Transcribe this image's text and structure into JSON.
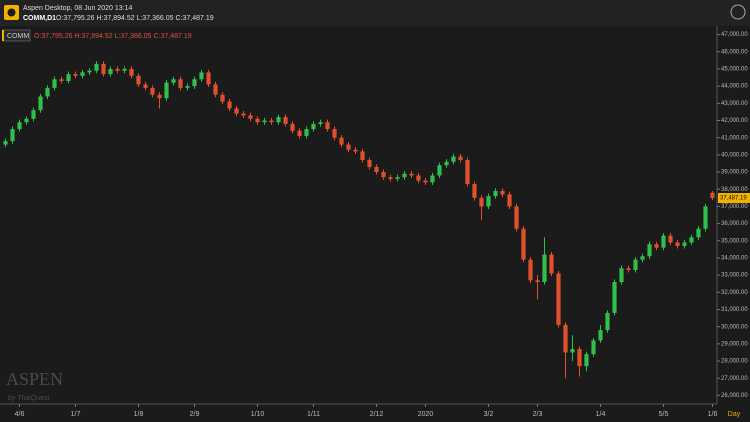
{
  "header": {
    "app_title": "Aspen Desktop, 08 Jun 2020 13:14",
    "symbol": "COMM,D1",
    "ohlc": "O:37,795.26 H:37,894.52 L:37,366.05 C:37,487.19"
  },
  "chart_data": {
    "type": "candlestick",
    "legend_symbol": "COMM",
    "legend_ohlc": "O:37,795.26 H:37,894.52 L:37,366.05 C:37,487.19",
    "watermark": "ASPEN",
    "watermark_sub": "by ThaiQuest",
    "x_unit": "Day",
    "price_tag": "37,487.19",
    "up_color": "#2fbf4a",
    "down_color": "#e0502d",
    "grid": false,
    "categories": [
      null,
      null,
      "4/6",
      null,
      null,
      null,
      null,
      null,
      null,
      null,
      "1/7",
      null,
      null,
      null,
      null,
      null,
      null,
      null,
      null,
      "1/8",
      null,
      null,
      null,
      null,
      null,
      null,
      null,
      "2/9",
      null,
      null,
      null,
      null,
      null,
      null,
      null,
      null,
      "1/10",
      null,
      null,
      null,
      null,
      null,
      null,
      null,
      "1/11",
      null,
      null,
      null,
      null,
      null,
      null,
      null,
      null,
      "2/12",
      null,
      null,
      null,
      null,
      null,
      null,
      "2020",
      null,
      null,
      null,
      null,
      null,
      null,
      null,
      null,
      "3/2",
      null,
      null,
      null,
      null,
      null,
      null,
      "2/3",
      null,
      null,
      null,
      null,
      null,
      null,
      null,
      null,
      "1/4",
      null,
      null,
      null,
      null,
      null,
      null,
      null,
      null,
      "5/5",
      null,
      null,
      null,
      null,
      null,
      null,
      "1/6"
    ],
    "open": [
      40600,
      40800,
      41500,
      41900,
      42100,
      42600,
      43400,
      43900,
      44400,
      44300,
      44700,
      44600,
      44800,
      44900,
      45300,
      44700,
      45000,
      44900,
      45000,
      44600,
      44100,
      43900,
      43500,
      43300,
      44200,
      44400,
      43900,
      44000,
      44400,
      44800,
      44100,
      43500,
      43100,
      42700,
      42400,
      42300,
      42100,
      41900,
      42000,
      41900,
      42200,
      41800,
      41400,
      41100,
      41500,
      41800,
      41900,
      41500,
      41000,
      40600,
      40300,
      40200,
      39700,
      39300,
      39000,
      38700,
      38600,
      38700,
      38900,
      38800,
      38500,
      38400,
      38800,
      39400,
      39600,
      39900,
      39700,
      38300,
      37500,
      37000,
      37600,
      37900,
      37700,
      37000,
      35700,
      33900,
      32700,
      32600,
      34200,
      33100,
      30100,
      28500,
      28700,
      27700,
      28400,
      29200,
      29800,
      30800,
      32600,
      33400,
      33300,
      33900,
      34100,
      34800,
      34600,
      35300,
      34900,
      34700,
      34900,
      35200,
      35700,
      37795.26
    ],
    "high": [
      40950,
      41650,
      42050,
      42250,
      42750,
      43550,
      44050,
      44550,
      44550,
      44850,
      44850,
      44950,
      45050,
      45450,
      45450,
      45150,
      45150,
      45150,
      45150,
      44750,
      44250,
      44050,
      43650,
      44350,
      44550,
      44550,
      44150,
      44550,
      44950,
      44950,
      44250,
      43650,
      43250,
      42850,
      42550,
      42450,
      42250,
      42150,
      42150,
      42350,
      42350,
      41950,
      41550,
      41650,
      41950,
      42050,
      42050,
      41650,
      41150,
      40750,
      40450,
      40350,
      39850,
      39450,
      39150,
      38850,
      38850,
      39050,
      39050,
      38950,
      38650,
      38950,
      39550,
      39750,
      40050,
      40050,
      39850,
      38450,
      37650,
      37750,
      38050,
      38050,
      37850,
      37150,
      35850,
      34050,
      33000,
      35200,
      34350,
      33250,
      30250,
      29500,
      28850,
      28550,
      29350,
      30100,
      30950,
      32750,
      33550,
      33550,
      34050,
      34250,
      34950,
      34950,
      35450,
      35450,
      35050,
      35050,
      35350,
      35850,
      37150,
      37894.52
    ],
    "low": [
      40450,
      40650,
      41350,
      41750,
      41950,
      42450,
      43250,
      43750,
      44150,
      44150,
      44450,
      44450,
      44650,
      44750,
      44550,
      44550,
      44750,
      44750,
      44450,
      43950,
      43750,
      43350,
      42700,
      43150,
      44050,
      43750,
      43750,
      43850,
      44250,
      43950,
      43350,
      42950,
      42550,
      42250,
      42150,
      41950,
      41750,
      41750,
      41750,
      41750,
      41650,
      41250,
      40950,
      40950,
      41350,
      41650,
      41350,
      40850,
      40450,
      40150,
      40050,
      39550,
      39150,
      38850,
      38550,
      38450,
      38450,
      38550,
      38650,
      38350,
      38250,
      38250,
      38650,
      39250,
      39450,
      39550,
      38150,
      37350,
      36200,
      36850,
      37450,
      37550,
      36850,
      35550,
      33750,
      32550,
      31600,
      32450,
      32950,
      29950,
      27000,
      28000,
      27100,
      27400,
      28250,
      29050,
      29650,
      30650,
      32450,
      33150,
      33150,
      33750,
      33950,
      34450,
      34450,
      34750,
      34550,
      34550,
      34750,
      35050,
      35550,
      37366.05
    ],
    "close": [
      40800,
      41500,
      41900,
      42100,
      42600,
      43400,
      43900,
      44400,
      44300,
      44700,
      44600,
      44800,
      44900,
      45300,
      44700,
      45000,
      44900,
      45000,
      44600,
      44100,
      43900,
      43500,
      43300,
      44200,
      44400,
      43900,
      44000,
      44400,
      44800,
      44100,
      43500,
      43100,
      42700,
      42400,
      42300,
      42100,
      41900,
      42000,
      41900,
      42200,
      41800,
      41400,
      41100,
      41500,
      41800,
      41900,
      41500,
      41000,
      40600,
      40300,
      40200,
      39700,
      39300,
      39000,
      38700,
      38600,
      38700,
      38900,
      38800,
      38500,
      38400,
      38800,
      39400,
      39600,
      39900,
      39700,
      38300,
      37500,
      37000,
      37600,
      37900,
      37700,
      37000,
      35700,
      33900,
      32700,
      32600,
      34200,
      33100,
      30100,
      28500,
      28700,
      27700,
      28400,
      29200,
      29800,
      30800,
      32600,
      33400,
      33300,
      33900,
      34100,
      34800,
      34600,
      35300,
      34900,
      34700,
      34900,
      35200,
      35700,
      37000,
      37487.19
    ],
    "ylim": [
      25500,
      47500
    ],
    "yticks": [
      {
        "value": 47000,
        "label": "47,000.00"
      },
      {
        "value": 46000,
        "label": "46,000.00"
      },
      {
        "value": 45000,
        "label": "45,000.00"
      },
      {
        "value": 44000,
        "label": "44,000.00"
      },
      {
        "value": 43000,
        "label": "43,000.00"
      },
      {
        "value": 42000,
        "label": "42,000.00"
      },
      {
        "value": 41000,
        "label": "41,000.00"
      },
      {
        "value": 40000,
        "label": "40,000.00"
      },
      {
        "value": 39000,
        "label": "39,000.00"
      },
      {
        "value": 38000,
        "label": "38,000.00"
      },
      {
        "value": 37000,
        "label": "37,000.00"
      },
      {
        "value": 36000,
        "label": "36,000.00"
      },
      {
        "value": 35000,
        "label": "35,000.00"
      },
      {
        "value": 34000,
        "label": "34,000.00"
      },
      {
        "value": 33000,
        "label": "33,000.00"
      },
      {
        "value": 32000,
        "label": "32,000.00"
      },
      {
        "value": 31000,
        "label": "31,000.00"
      },
      {
        "value": 30000,
        "label": "30,000.00"
      },
      {
        "value": 29000,
        "label": "29,000.00"
      },
      {
        "value": 28000,
        "label": "28,000.00"
      },
      {
        "value": 27000,
        "label": "27,000.00"
      },
      {
        "value": 26000,
        "label": "26,000.00"
      }
    ]
  }
}
